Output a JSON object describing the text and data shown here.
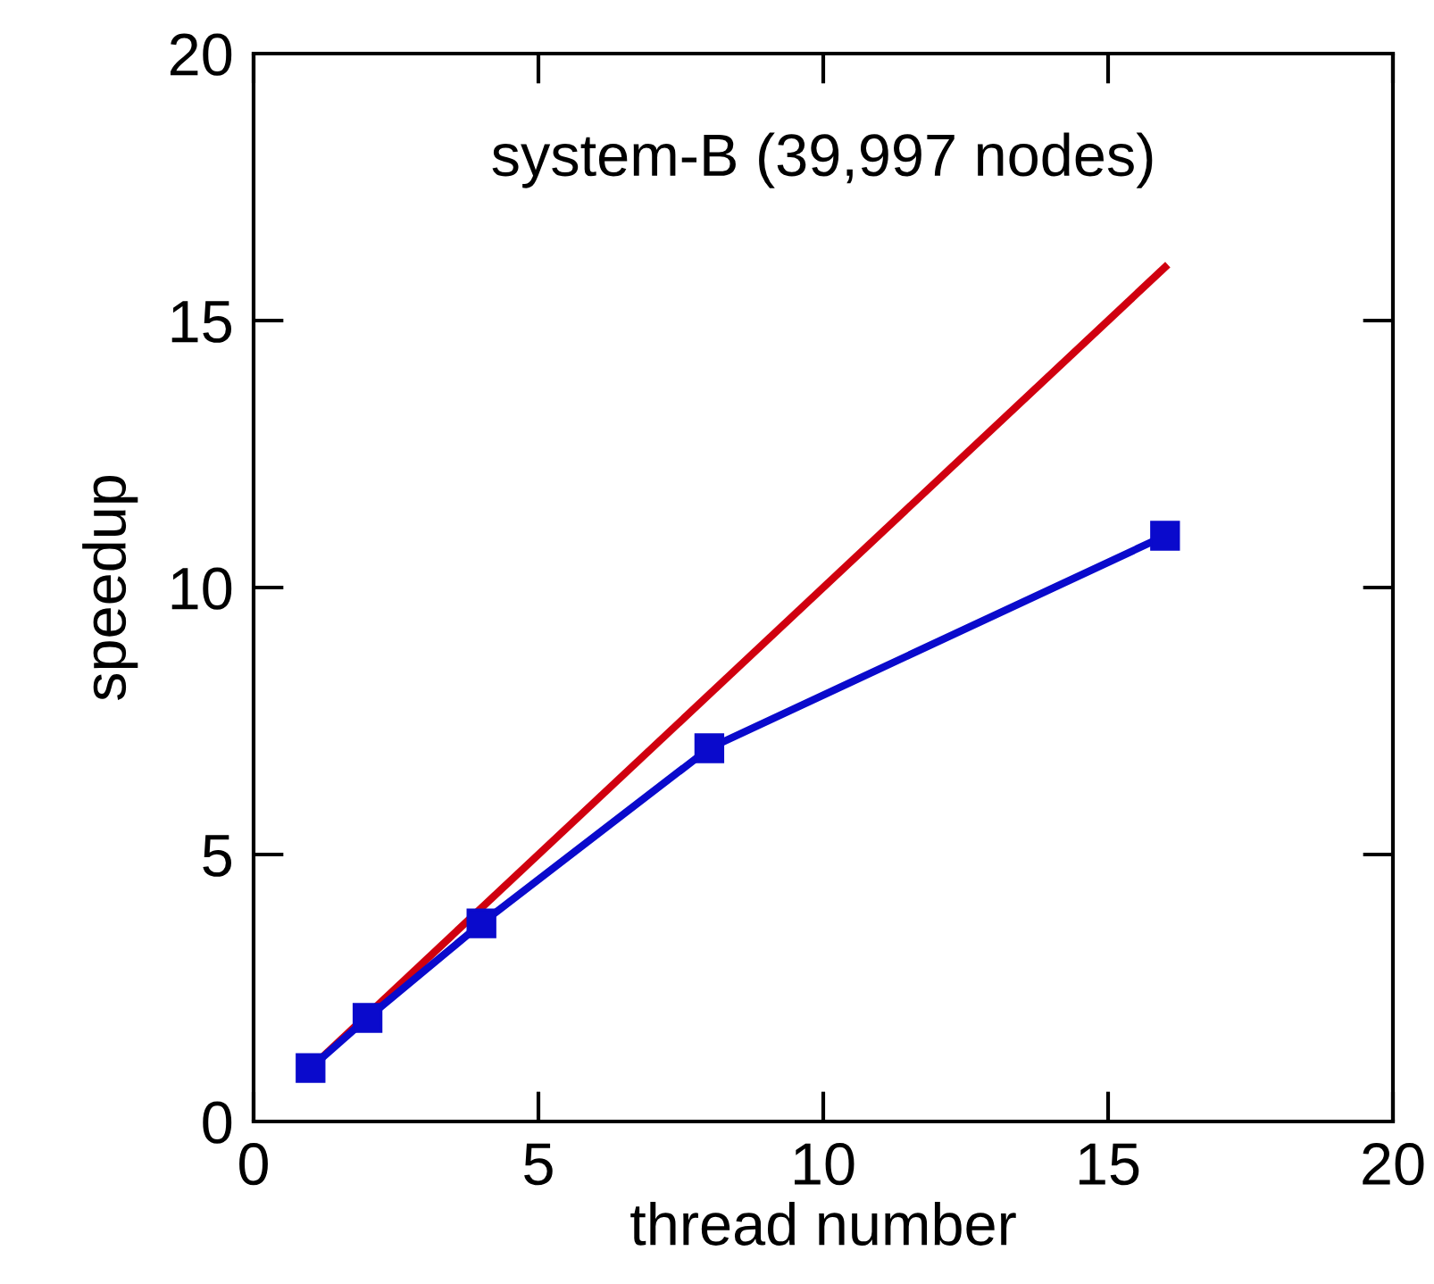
{
  "chart_data": {
    "type": "line",
    "title": "system-B (39,997 nodes)",
    "xlabel": "thread number",
    "ylabel": "speedup",
    "xlim": [
      0,
      20
    ],
    "ylim": [
      0,
      20
    ],
    "xticks": [
      0,
      5,
      10,
      15,
      20
    ],
    "yticks": [
      0,
      5,
      10,
      15,
      20
    ],
    "series": [
      {
        "color": "#d0000f",
        "x": [
          1,
          16
        ],
        "values": [
          1,
          16
        ],
        "marker": "none"
      },
      {
        "color": "#0a0acc",
        "x": [
          1,
          2,
          4,
          8,
          16
        ],
        "values": [
          1.0,
          1.94,
          3.71,
          6.99,
          10.97
        ],
        "marker": "square"
      }
    ]
  }
}
